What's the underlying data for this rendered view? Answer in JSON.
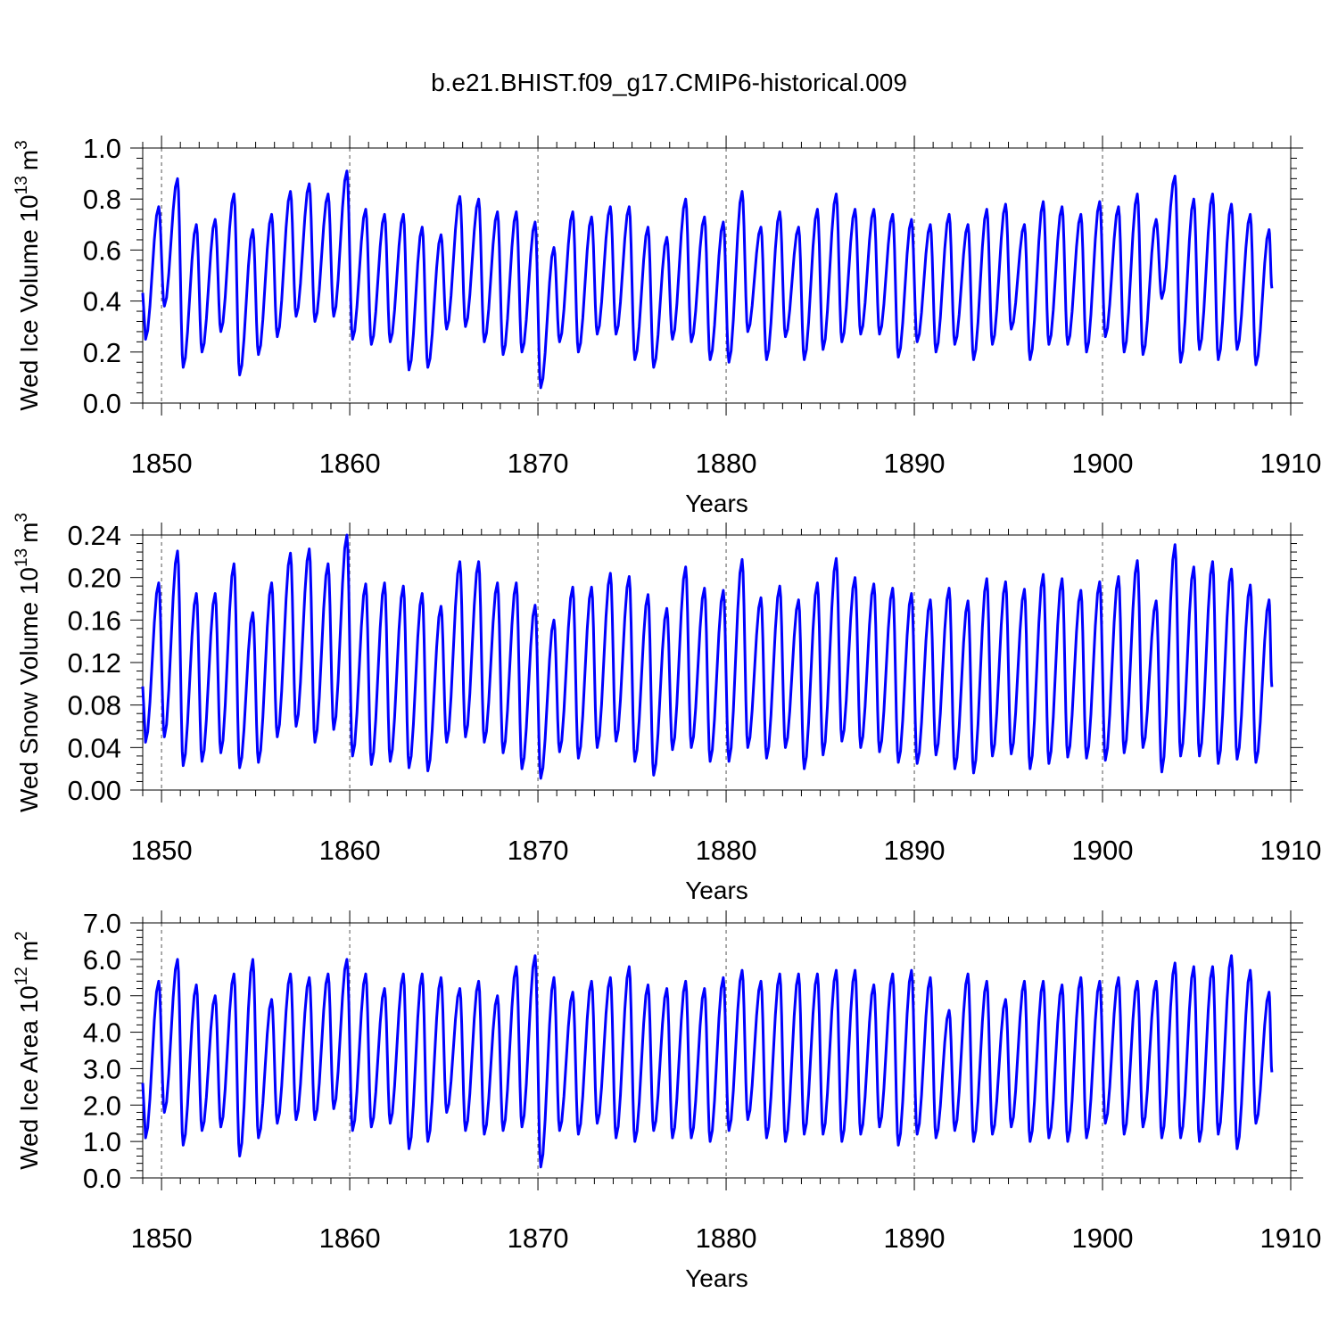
{
  "title": "b.e21.BHIST.f09_g17.CMIP6-historical.009",
  "line_color": "#0000ff",
  "chart_data": [
    {
      "type": "line",
      "ylabel": "Wed Ice Volume 10",
      "ylabel_exp": "13",
      "ylabel_unit": "m",
      "ylabel_unit_exp": "3",
      "xlabel": "Years",
      "xlim": [
        1849,
        1910
      ],
      "ylim": [
        0.0,
        1.0
      ],
      "yticks": [
        "0.0",
        "0.2",
        "0.4",
        "0.6",
        "0.8",
        "1.0"
      ],
      "ytick_values": [
        0.0,
        0.2,
        0.4,
        0.6,
        0.8,
        1.0
      ],
      "xticks": [
        "1850",
        "1860",
        "1870",
        "1880",
        "1890",
        "1900",
        "1910"
      ],
      "xtick_values": [
        1850,
        1860,
        1870,
        1880,
        1890,
        1900,
        1910
      ],
      "series": [
        {
          "name": "Wed Ice Volume",
          "start_year": 1849,
          "max": [
            0.77,
            0.88,
            0.7,
            0.72,
            0.82,
            0.68,
            0.74,
            0.83,
            0.86,
            0.82,
            0.91,
            0.76,
            0.74,
            0.74,
            0.69,
            0.66,
            0.81,
            0.8,
            0.75,
            0.75,
            0.71,
            0.61,
            0.75,
            0.73,
            0.77,
            0.77,
            0.69,
            0.65,
            0.8,
            0.73,
            0.71,
            0.83,
            0.69,
            0.75,
            0.69,
            0.76,
            0.82,
            0.76,
            0.76,
            0.74,
            0.72,
            0.7,
            0.74,
            0.7,
            0.76,
            0.78,
            0.7,
            0.79,
            0.77,
            0.74,
            0.79,
            0.77,
            0.82,
            0.72,
            0.89,
            0.8,
            0.82,
            0.78,
            0.74,
            0.68
          ],
          "min": [
            0.25,
            0.38,
            0.14,
            0.2,
            0.28,
            0.11,
            0.19,
            0.26,
            0.34,
            0.32,
            0.34,
            0.25,
            0.23,
            0.24,
            0.13,
            0.14,
            0.29,
            0.3,
            0.24,
            0.19,
            0.2,
            0.06,
            0.24,
            0.2,
            0.27,
            0.27,
            0.17,
            0.14,
            0.25,
            0.24,
            0.17,
            0.16,
            0.28,
            0.17,
            0.26,
            0.17,
            0.21,
            0.24,
            0.27,
            0.27,
            0.18,
            0.24,
            0.2,
            0.23,
            0.17,
            0.23,
            0.29,
            0.17,
            0.23,
            0.23,
            0.2,
            0.26,
            0.2,
            0.19,
            0.41,
            0.16,
            0.21,
            0.17,
            0.21,
            0.15
          ],
          "end": 0.45
        }
      ]
    },
    {
      "type": "line",
      "ylabel": "Wed Snow Volume 10",
      "ylabel_exp": "13",
      "ylabel_unit": "m",
      "ylabel_unit_exp": "3",
      "xlabel": "Years",
      "xlim": [
        1849,
        1910
      ],
      "ylim": [
        0.0,
        0.24
      ],
      "yticks": [
        "0.00",
        "0.04",
        "0.08",
        "0.12",
        "0.16",
        "0.20",
        "0.24"
      ],
      "ytick_values": [
        0.0,
        0.04,
        0.08,
        0.12,
        0.16,
        0.2,
        0.24
      ],
      "xticks": [
        "1850",
        "1860",
        "1870",
        "1880",
        "1890",
        "1900",
        "1910"
      ],
      "xtick_values": [
        1850,
        1860,
        1870,
        1880,
        1890,
        1900,
        1910
      ],
      "series": [
        {
          "name": "Wed Snow Volume",
          "start_year": 1849,
          "max": [
            0.195,
            0.225,
            0.185,
            0.185,
            0.213,
            0.167,
            0.195,
            0.223,
            0.227,
            0.213,
            0.24,
            0.194,
            0.195,
            0.192,
            0.185,
            0.173,
            0.215,
            0.215,
            0.195,
            0.195,
            0.174,
            0.16,
            0.191,
            0.191,
            0.204,
            0.201,
            0.184,
            0.171,
            0.21,
            0.19,
            0.188,
            0.217,
            0.181,
            0.192,
            0.179,
            0.195,
            0.218,
            0.2,
            0.194,
            0.19,
            0.185,
            0.179,
            0.19,
            0.178,
            0.199,
            0.196,
            0.189,
            0.203,
            0.199,
            0.188,
            0.196,
            0.201,
            0.216,
            0.178,
            0.231,
            0.21,
            0.215,
            0.208,
            0.193,
            0.179
          ],
          "min": [
            0.045,
            0.05,
            0.023,
            0.027,
            0.035,
            0.021,
            0.026,
            0.05,
            0.06,
            0.045,
            0.057,
            0.032,
            0.024,
            0.027,
            0.021,
            0.018,
            0.045,
            0.05,
            0.045,
            0.035,
            0.02,
            0.011,
            0.036,
            0.03,
            0.04,
            0.046,
            0.027,
            0.014,
            0.038,
            0.04,
            0.027,
            0.027,
            0.04,
            0.03,
            0.04,
            0.02,
            0.033,
            0.046,
            0.04,
            0.036,
            0.026,
            0.025,
            0.033,
            0.02,
            0.016,
            0.032,
            0.034,
            0.02,
            0.025,
            0.031,
            0.03,
            0.028,
            0.035,
            0.04,
            0.017,
            0.032,
            0.032,
            0.025,
            0.029,
            0.026
          ],
          "end": 0.097
        }
      ]
    },
    {
      "type": "line",
      "ylabel": "Wed Ice Area 10",
      "ylabel_exp": "12",
      "ylabel_unit": "m",
      "ylabel_unit_exp": "2",
      "xlabel": "Years",
      "xlim": [
        1849,
        1910
      ],
      "ylim": [
        0.0,
        7.0
      ],
      "yticks": [
        "0.0",
        "1.0",
        "2.0",
        "3.0",
        "4.0",
        "5.0",
        "6.0",
        "7.0"
      ],
      "ytick_values": [
        0.0,
        1.0,
        2.0,
        3.0,
        4.0,
        5.0,
        6.0,
        7.0
      ],
      "xticks": [
        "1850",
        "1860",
        "1870",
        "1880",
        "1890",
        "1900",
        "1910"
      ],
      "xtick_values": [
        1850,
        1860,
        1870,
        1880,
        1890,
        1900,
        1910
      ],
      "series": [
        {
          "name": "Wed Ice Area",
          "start_year": 1849,
          "max": [
            5.4,
            6.0,
            5.3,
            5.0,
            5.6,
            6.0,
            4.9,
            5.6,
            5.5,
            5.6,
            6.0,
            5.6,
            5.2,
            5.6,
            5.6,
            5.5,
            5.2,
            5.4,
            5.0,
            5.8,
            6.1,
            5.5,
            5.1,
            5.4,
            5.5,
            5.8,
            5.3,
            5.2,
            5.4,
            5.2,
            5.5,
            5.7,
            5.4,
            5.6,
            5.6,
            5.6,
            5.7,
            5.7,
            5.3,
            5.6,
            5.7,
            5.5,
            4.6,
            5.6,
            5.4,
            4.9,
            5.4,
            5.4,
            5.3,
            5.5,
            5.4,
            5.5,
            5.4,
            5.4,
            5.9,
            5.8,
            5.8,
            6.1,
            5.7,
            5.1
          ],
          "min": [
            1.1,
            1.8,
            0.9,
            1.3,
            1.4,
            0.6,
            1.1,
            1.5,
            1.6,
            1.6,
            1.9,
            1.3,
            1.4,
            1.5,
            0.8,
            1.0,
            1.8,
            1.3,
            1.2,
            1.3,
            1.4,
            0.3,
            1.3,
            1.2,
            1.5,
            1.1,
            1.0,
            1.3,
            1.1,
            1.1,
            1.0,
            1.3,
            1.6,
            1.1,
            1.0,
            1.2,
            1.2,
            1.0,
            1.2,
            1.4,
            0.9,
            1.2,
            1.1,
            1.3,
            1.0,
            1.2,
            1.4,
            1.0,
            1.1,
            1.0,
            1.1,
            1.5,
            1.2,
            1.4,
            1.1,
            1.1,
            1.0,
            1.2,
            0.8,
            1.5
          ],
          "end": 2.9
        }
      ]
    }
  ]
}
